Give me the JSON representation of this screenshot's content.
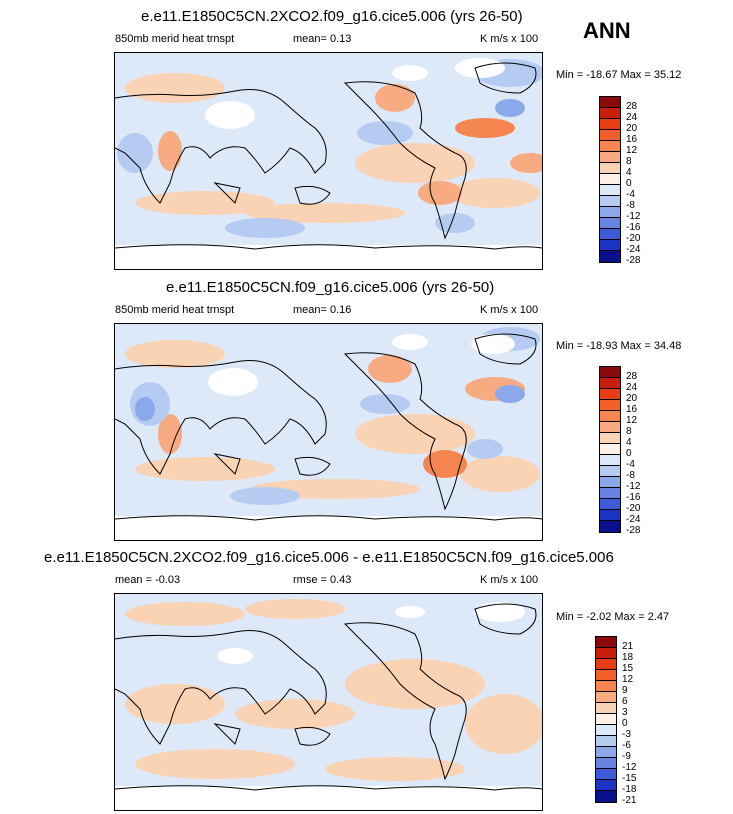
{
  "season": "ANN",
  "panels": [
    {
      "title": "e.e11.E1850C5CN.2XCO2.f09_g16.cice5.006 (yrs 26-50)",
      "left": "850mb merid heat trnspt",
      "mid": "mean=   0.13",
      "right": "K m/s x 100",
      "minmax": "Min = -18.67 Max =  35.12",
      "levels": [
        "28",
        "24",
        "20",
        "16",
        "12",
        "8",
        "4",
        "0",
        "-4",
        "-8",
        "-12",
        "-16",
        "-20",
        "-24",
        "-28"
      ],
      "colors": [
        "#8b0a0a",
        "#c81e0c",
        "#e63d14",
        "#f2602a",
        "#f5864f",
        "#f8ab80",
        "#fad2b4",
        "#fdf0e6",
        "#dde8f8",
        "#b6cbf2",
        "#8aa8ea",
        "#6584e0",
        "#3d5ad8",
        "#1c34c4",
        "#0a0f8c"
      ]
    },
    {
      "title": "e.e11.E1850C5CN.f09_g16.cice5.006 (yrs 26-50)",
      "left": "850mb merid heat trnspt",
      "mid": "mean=   0.16",
      "right": "K m/s x 100",
      "minmax": "Min = -18.93 Max =  34.48",
      "levels": [
        "28",
        "24",
        "20",
        "16",
        "12",
        "8",
        "4",
        "0",
        "-4",
        "-8",
        "-12",
        "-16",
        "-20",
        "-24",
        "-28"
      ],
      "colors": [
        "#8b0a0a",
        "#c81e0c",
        "#e63d14",
        "#f2602a",
        "#f5864f",
        "#f8ab80",
        "#fad2b4",
        "#fdf0e6",
        "#dde8f8",
        "#b6cbf2",
        "#8aa8ea",
        "#6584e0",
        "#3d5ad8",
        "#1c34c4",
        "#0a0f8c"
      ]
    },
    {
      "title": "e.e11.E1850C5CN.2XCO2.f09_g16.cice5.006 - e.e11.E1850C5CN.f09_g16.cice5.006",
      "left": "mean =  -0.03",
      "mid": "rmse =   0.43",
      "right": "K m/s x 100",
      "minmax": "Min =  -2.02 Max =   2.47",
      "levels": [
        "21",
        "18",
        "15",
        "12",
        "9",
        "6",
        "3",
        "0",
        "-3",
        "-6",
        "-9",
        "-12",
        "-15",
        "-18",
        "-21"
      ],
      "colors": [
        "#8b0a0a",
        "#c81e0c",
        "#e63d14",
        "#f2602a",
        "#f5864f",
        "#f8ab80",
        "#fad2b4",
        "#fdf0e6",
        "#dde8f8",
        "#b6cbf2",
        "#8aa8ea",
        "#6584e0",
        "#3d5ad8",
        "#1c34c4",
        "#0a0f8c"
      ]
    }
  ]
}
